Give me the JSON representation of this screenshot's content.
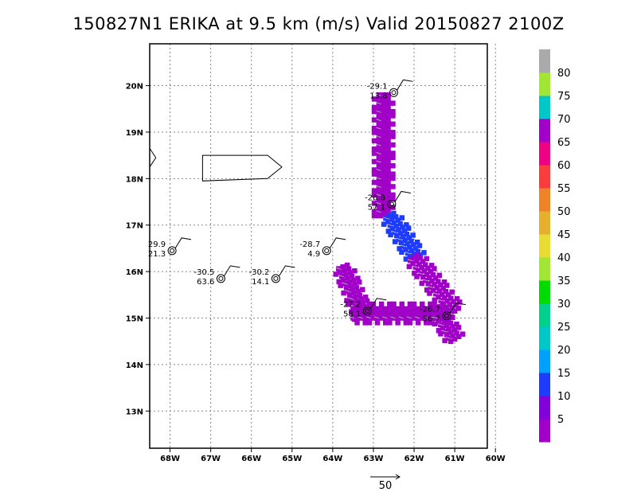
{
  "chart_data": {
    "type": "heatmap",
    "title": "150827N1 ERIKA at 9.5 km (m/s) Valid 20150827 2100Z",
    "x_ticks": [
      "68W",
      "67W",
      "66W",
      "65W",
      "64W",
      "63W",
      "62W",
      "61W",
      "60W"
    ],
    "y_ticks": [
      "20N",
      "19N",
      "18N",
      "17N",
      "16N",
      "15N",
      "14N",
      "13N"
    ],
    "lon_range": [
      -68.5,
      -60.2
    ],
    "lat_range": [
      12.2,
      20.9
    ],
    "grid": true,
    "colorbar": {
      "labels": [
        "5",
        "10",
        "15",
        "20",
        "25",
        "30",
        "35",
        "40",
        "45",
        "50",
        "55",
        "60",
        "65",
        "70",
        "75",
        "80"
      ],
      "colors": [
        "#a000c8",
        "#8200dc",
        "#1e3cff",
        "#00a0ff",
        "#00c8c8",
        "#00d28c",
        "#00dc00",
        "#a0e632",
        "#e6dc32",
        "#e6af2d",
        "#f08228",
        "#fa3c3c",
        "#f00082",
        "#a000c8",
        "#00c8c8",
        "#a0e632",
        "#aaaaaa"
      ]
    },
    "stations": [
      {
        "lon": -62.5,
        "lat": 19.85,
        "temp": "-29.1",
        "wind": "13.8"
      },
      {
        "lon": -62.55,
        "lat": 17.45,
        "temp": "-26.8",
        "wind": "57.1"
      },
      {
        "lon": -64.15,
        "lat": 16.45,
        "temp": "-28.7",
        "wind": "4.9"
      },
      {
        "lon": -65.4,
        "lat": 15.85,
        "temp": "-30.2",
        "wind": "14.1"
      },
      {
        "lon": -66.75,
        "lat": 15.85,
        "temp": "-30.5",
        "wind": "63.6"
      },
      {
        "lon": -67.95,
        "lat": 16.45,
        "temp": "29.9",
        "wind": "21.3"
      },
      {
        "lon": -63.15,
        "lat": 15.15,
        "temp": "-27.2",
        "wind": "58.1"
      },
      {
        "lon": -61.2,
        "lat": 15.05,
        "temp": "-26.7",
        "wind": "56.7"
      }
    ],
    "flight_track": {
      "segments": [
        {
          "from": [
            -62.75,
            19.8
          ],
          "to": [
            -62.75,
            17.2
          ],
          "value": 68
        },
        {
          "from": [
            -62.6,
            17.2
          ],
          "to": [
            -61.95,
            16.3
          ],
          "value": 14
        },
        {
          "from": [
            -62.0,
            16.3
          ],
          "to": [
            -61.0,
            15.15
          ],
          "value": 68
        },
        {
          "from": [
            -63.75,
            16.1
          ],
          "to": [
            -63.25,
            15.05
          ],
          "value": 68
        },
        {
          "from": [
            -63.5,
            15.1
          ],
          "to": [
            -61.2,
            15.1
          ],
          "value": 68
        },
        {
          "from": [
            -61.35,
            15.05
          ],
          "to": [
            -61.0,
            14.55
          ],
          "value": 68
        }
      ]
    },
    "vector_reference": {
      "label": "50"
    }
  }
}
